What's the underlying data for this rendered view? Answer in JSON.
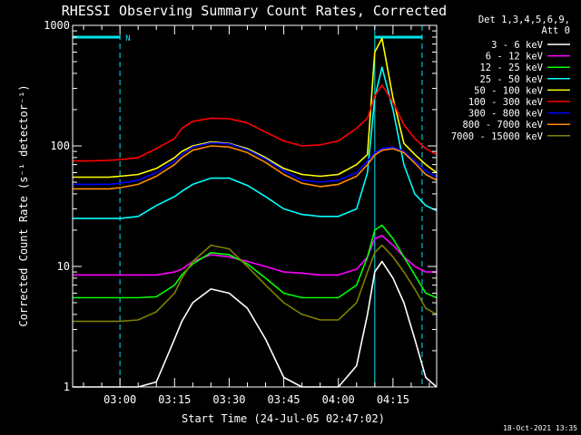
{
  "chart_data": {
    "type": "line",
    "title": "RHESSI Observing Summary Count Rates, Corrected",
    "xlabel": "Start Time (24-Jul-05 02:47:02)",
    "ylabel": "Corrected Count Rate (s⁻¹ detector⁻¹)",
    "x_tick_labels": [
      "03:00",
      "03:15",
      "03:30",
      "03:45",
      "04:00",
      "04:15"
    ],
    "y_tick_labels": [
      "1",
      "10",
      "100",
      "1000"
    ],
    "y_scale": "log",
    "ylim": [
      1,
      1000
    ],
    "xlim": [
      "02:47",
      "04:27"
    ],
    "grid": false,
    "legend_position": "right",
    "legend_header": [
      "Det 1,3,4,5,6,9,",
      "Att 0"
    ],
    "footer_date": "18-Oct-2021 13:35",
    "annotations": {
      "flag_letter": "N",
      "saa_bar_color": "#00e5ee",
      "night_markers": [
        "03:00",
        "04:10",
        "04:23"
      ],
      "flag_intervals": [
        [
          "02:47",
          "03:00"
        ],
        [
          "04:10",
          "04:23"
        ]
      ]
    },
    "x": [
      "02:47",
      "02:52",
      "02:57",
      "03:00",
      "03:05",
      "03:10",
      "03:15",
      "03:17",
      "03:20",
      "03:25",
      "03:30",
      "03:35",
      "03:40",
      "03:45",
      "03:50",
      "03:55",
      "04:00",
      "04:05",
      "04:08",
      "04:10",
      "04:12",
      "04:15",
      "04:18",
      "04:21",
      "04:24",
      "04:27"
    ],
    "series": [
      {
        "name": "3 - 6 keV",
        "color": "#ffffff",
        "values": [
          1,
          1,
          1,
          1,
          1,
          1.1,
          2.5,
          3.5,
          5,
          6.5,
          6,
          4.5,
          2.5,
          1.2,
          1,
          1,
          1,
          1.5,
          4,
          9,
          11,
          8,
          5,
          2.5,
          1.2,
          1
        ]
      },
      {
        "name": "6 - 12 keV",
        "color": "#ff00ff",
        "values": [
          8.5,
          8.5,
          8.5,
          8.5,
          8.5,
          8.5,
          9,
          9.5,
          11,
          12.5,
          12,
          11,
          10,
          9,
          8.8,
          8.5,
          8.5,
          9.5,
          12,
          17,
          18,
          15,
          12,
          10,
          9,
          9
        ]
      },
      {
        "name": "12 - 25 keV",
        "color": "#00ff00",
        "values": [
          5.5,
          5.5,
          5.5,
          5.5,
          5.5,
          5.6,
          7,
          8.5,
          10.5,
          13,
          12.5,
          10.5,
          8,
          6,
          5.5,
          5.5,
          5.5,
          7,
          12,
          20,
          22,
          17,
          12,
          8.5,
          6,
          5.5
        ]
      },
      {
        "name": "25 - 50 keV",
        "color": "#00ffff",
        "values": [
          25,
          25,
          25,
          25,
          26,
          32,
          38,
          42,
          48,
          54,
          54,
          47,
          38,
          30,
          27,
          26,
          26,
          30,
          60,
          250,
          450,
          200,
          70,
          40,
          32,
          29
        ]
      },
      {
        "name": "50 - 100 keV",
        "color": "#ffff00",
        "values": [
          55,
          55,
          55,
          56,
          58,
          65,
          80,
          90,
          100,
          108,
          105,
          95,
          80,
          65,
          58,
          56,
          58,
          70,
          85,
          600,
          780,
          250,
          105,
          85,
          70,
          60
        ]
      },
      {
        "name": "100 - 300 keV",
        "color": "#ff0000",
        "values": [
          75,
          75,
          76,
          77,
          80,
          95,
          115,
          140,
          160,
          170,
          168,
          155,
          130,
          110,
          100,
          102,
          110,
          140,
          170,
          260,
          320,
          230,
          150,
          115,
          95,
          85
        ]
      },
      {
        "name": "300 - 800 keV",
        "color": "#0000ff",
        "values": [
          48,
          48,
          48,
          49,
          52,
          60,
          75,
          85,
          98,
          106,
          104,
          93,
          78,
          62,
          52,
          50,
          52,
          60,
          75,
          88,
          95,
          98,
          90,
          75,
          62,
          55
        ]
      },
      {
        "name": "800 - 7000 keV",
        "color": "#ff8c00",
        "values": [
          44,
          44,
          44,
          45,
          48,
          56,
          70,
          80,
          92,
          100,
          98,
          88,
          73,
          58,
          49,
          46,
          48,
          56,
          70,
          84,
          92,
          95,
          88,
          72,
          58,
          52
        ]
      },
      {
        "name": "7000 - 15000 keV",
        "color": "#808000",
        "values": [
          3.5,
          3.5,
          3.5,
          3.5,
          3.6,
          4.2,
          6,
          8,
          11,
          15,
          14,
          10,
          7,
          5,
          4,
          3.6,
          3.6,
          5,
          9,
          13,
          15,
          12,
          9,
          6.5,
          4.5,
          4
        ]
      }
    ]
  }
}
